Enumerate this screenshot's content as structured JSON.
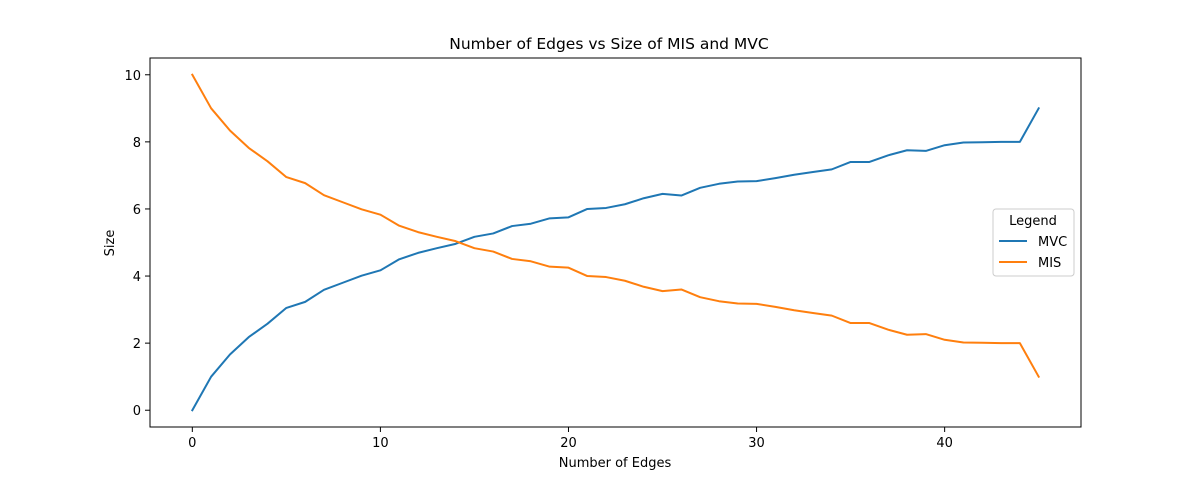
{
  "chart_data": {
    "type": "line",
    "title": "Number of Edges vs Size of MIS and MVC",
    "xlabel": "Number of Edges",
    "ylabel": "Size",
    "xlim": [
      -2.25,
      47.25
    ],
    "ylim": [
      -0.5,
      10.5
    ],
    "xticks": [
      0,
      10,
      20,
      30,
      40
    ],
    "yticks": [
      0,
      2,
      4,
      6,
      8,
      10
    ],
    "grid": false,
    "legend": {
      "title": "Legend",
      "position": "center-right"
    },
    "x": [
      0,
      1,
      2,
      3,
      4,
      5,
      6,
      7,
      8,
      9,
      10,
      11,
      12,
      13,
      14,
      15,
      16,
      17,
      18,
      19,
      20,
      21,
      22,
      23,
      24,
      25,
      26,
      27,
      28,
      29,
      30,
      31,
      32,
      33,
      34,
      35,
      36,
      37,
      38,
      39,
      40,
      41,
      42,
      43,
      44,
      45
    ],
    "series": [
      {
        "name": "MVC",
        "color": "#1f77b4",
        "values": [
          0,
          1.0,
          1.66,
          2.18,
          2.58,
          3.05,
          3.23,
          3.59,
          3.8,
          4.01,
          4.17,
          4.5,
          4.69,
          4.83,
          4.96,
          5.17,
          5.27,
          5.49,
          5.56,
          5.72,
          5.75,
          6.0,
          6.03,
          6.14,
          6.32,
          6.45,
          6.4,
          6.63,
          6.75,
          6.82,
          6.83,
          6.92,
          7.02,
          7.1,
          7.18,
          7.4,
          7.4,
          7.6,
          7.75,
          7.73,
          7.9,
          7.98,
          7.99,
          8.0,
          8.0,
          9.0
        ]
      },
      {
        "name": "MIS",
        "color": "#ff7f0e",
        "values": [
          10,
          9.0,
          8.34,
          7.82,
          7.42,
          6.95,
          6.77,
          6.41,
          6.2,
          5.99,
          5.83,
          5.5,
          5.31,
          5.17,
          5.04,
          4.83,
          4.73,
          4.51,
          4.44,
          4.28,
          4.25,
          4.0,
          3.97,
          3.86,
          3.68,
          3.55,
          3.6,
          3.37,
          3.25,
          3.18,
          3.17,
          3.08,
          2.98,
          2.9,
          2.82,
          2.6,
          2.6,
          2.4,
          2.25,
          2.27,
          2.1,
          2.02,
          2.01,
          2.0,
          2.0,
          1.0
        ]
      }
    ]
  }
}
